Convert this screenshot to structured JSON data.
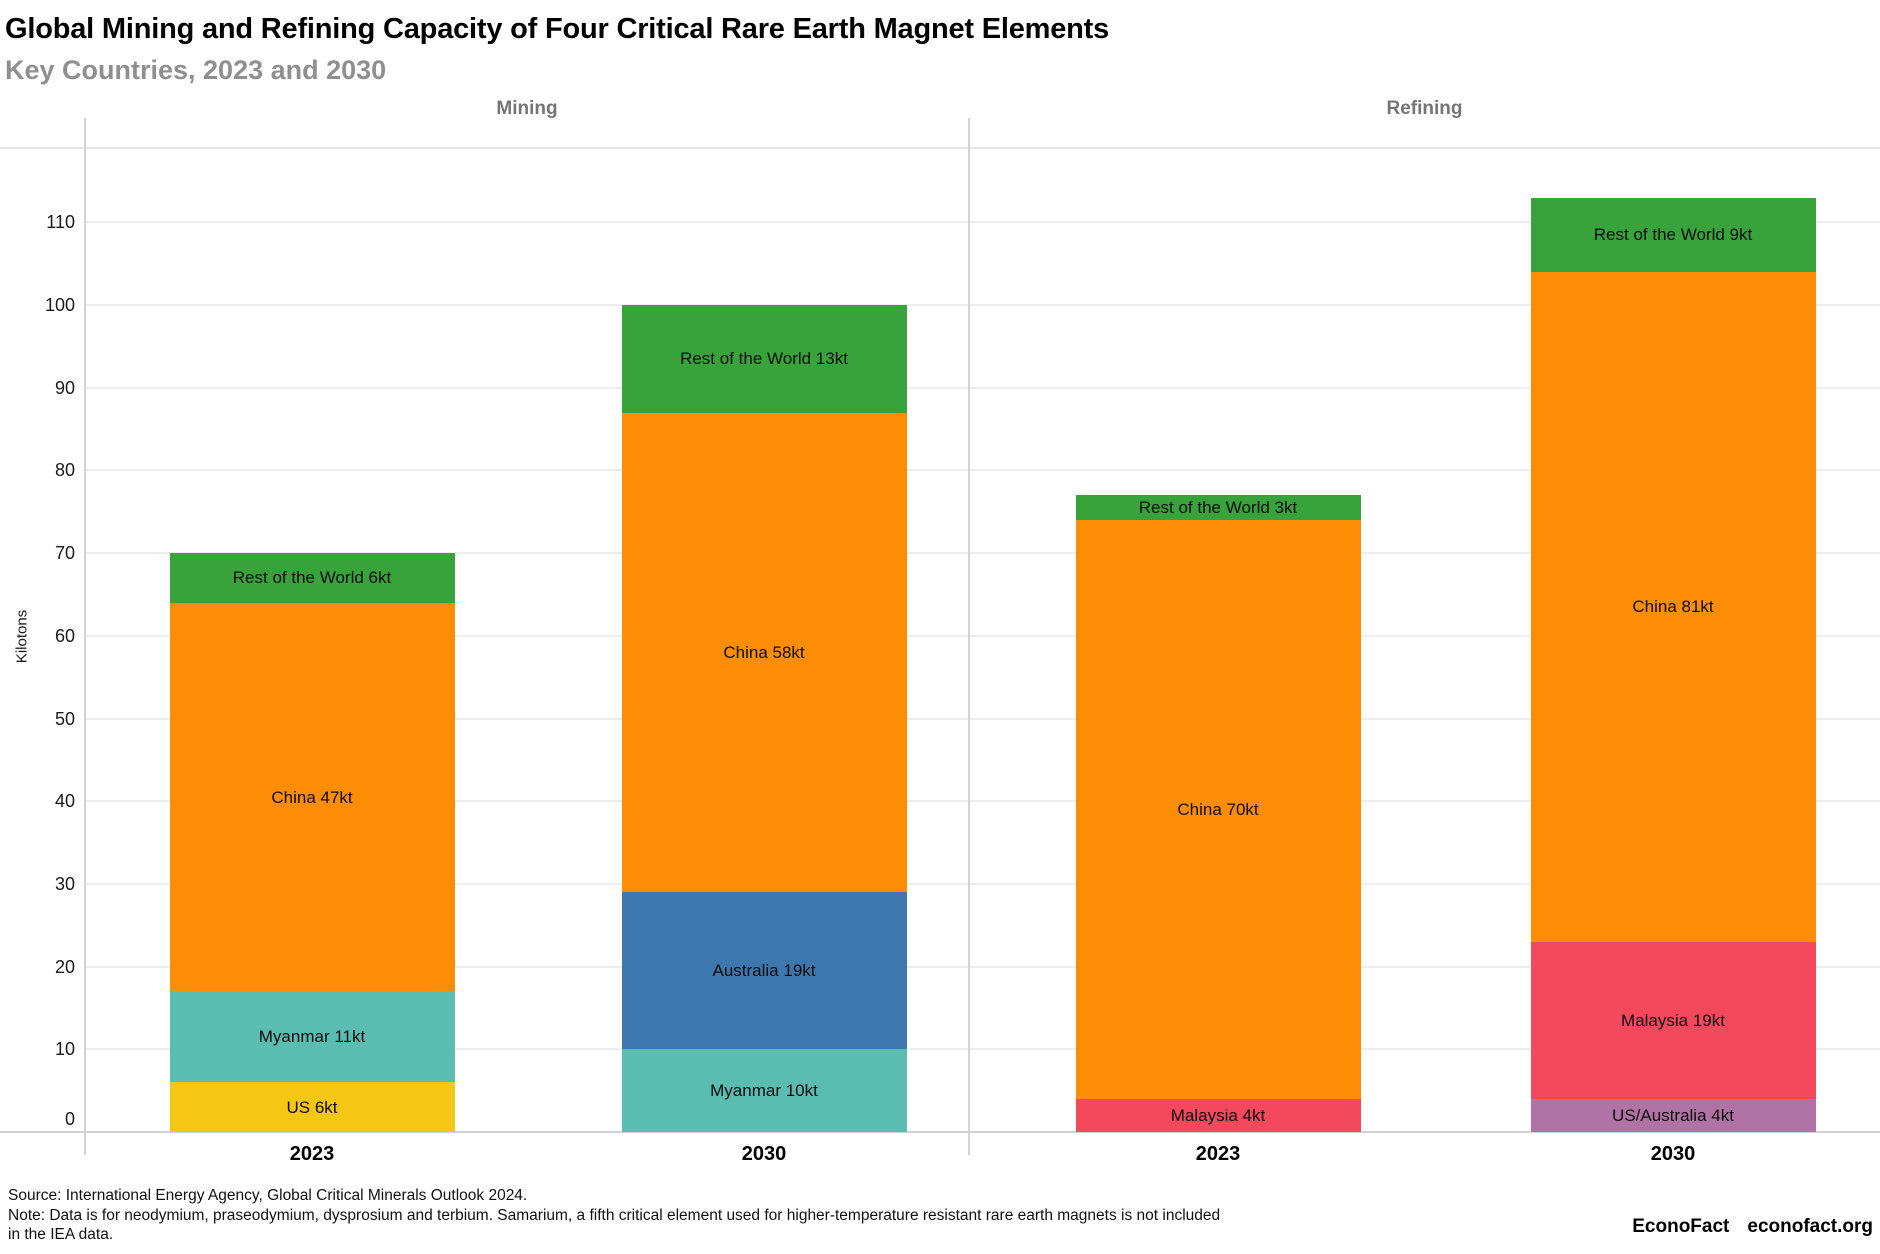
{
  "header": {
    "title": "Global Mining and Refining Capacity of Four Critical Rare Earth Magnet Elements",
    "subtitle": "Key Countries, 2023 and 2030"
  },
  "chart_data": {
    "type": "bar",
    "stacked": true,
    "unit": "kt",
    "title": "Global Mining and Refining Capacity of Four Critical Rare Earth Magnet Elements",
    "subtitle": "Key Countries, 2023 and 2030",
    "xlabel": "",
    "ylabel": "Kilotons",
    "ylim": [
      0,
      119
    ],
    "yticks": [
      0,
      10,
      20,
      30,
      40,
      50,
      60,
      70,
      80,
      90,
      100,
      110
    ],
    "grid": true,
    "legend": "none (labels inside segments)",
    "panels": [
      {
        "title": "Mining",
        "categories": [
          "2023",
          "2030"
        ],
        "bars": [
          {
            "category": "2023",
            "total": 70,
            "segments": [
              {
                "name": "US",
                "value": 6,
                "label": "US 6kt",
                "color": "#F3C713"
              },
              {
                "name": "Myanmar",
                "value": 11,
                "label": "Myanmar 11kt",
                "color": "#5BBCB1"
              },
              {
                "name": "China",
                "value": 47,
                "label": "China 47kt",
                "color": "#FC8D05"
              },
              {
                "name": "Rest of the World",
                "value": 6,
                "label": "Rest of the World 6kt",
                "color": "#38A33A"
              }
            ]
          },
          {
            "category": "2030",
            "total": 100,
            "segments": [
              {
                "name": "Myanmar",
                "value": 10,
                "label": "Myanmar 10kt",
                "color": "#5BBCB1"
              },
              {
                "name": "Australia",
                "value": 19,
                "label": "Australia 19kt",
                "color": "#3D77AE"
              },
              {
                "name": "China",
                "value": 58,
                "label": "China 58kt",
                "color": "#FC8D05"
              },
              {
                "name": "Rest of the World",
                "value": 13,
                "label": "Rest of the World 13kt",
                "color": "#38A33A"
              }
            ]
          }
        ]
      },
      {
        "title": "Refining",
        "categories": [
          "2023",
          "2030"
        ],
        "bars": [
          {
            "category": "2023",
            "total": 77,
            "segments": [
              {
                "name": "Malaysia",
                "value": 4,
                "label": "Malaysia 4kt",
                "color": "#F4495C"
              },
              {
                "name": "China",
                "value": 70,
                "label": "China 70kt",
                "color": "#FC8D05"
              },
              {
                "name": "Rest of the World",
                "value": 3,
                "label": "Rest of the World 3kt",
                "color": "#38A33A"
              }
            ]
          },
          {
            "category": "2030",
            "total": 113,
            "segments": [
              {
                "name": "US/Australia",
                "value": 4,
                "label": "US/Australia 4kt",
                "color": "#B173A6"
              },
              {
                "name": "Malaysia",
                "value": 19,
                "label": "Malaysia 19kt",
                "color": "#F4495C"
              },
              {
                "name": "China",
                "value": 81,
                "label": "China 81kt",
                "color": "#FC8D05"
              },
              {
                "name": "Rest of the World",
                "value": 9,
                "label": "Rest of the World 9kt",
                "color": "#38A33A"
              }
            ]
          }
        ]
      }
    ]
  },
  "footer": {
    "source": "Source: International Energy Agency, Global Critical Minerals Outlook 2024.",
    "note_lines": [
      "Note: Data is for neodymium, praseodymium, dysprosium and terbium. Samarium, a fifth critical element used for higher-temperature resistant rare earth magnets is not included",
      "in the IEA data."
    ],
    "brand": "EconoFact",
    "brand_url": "econofact.org"
  }
}
